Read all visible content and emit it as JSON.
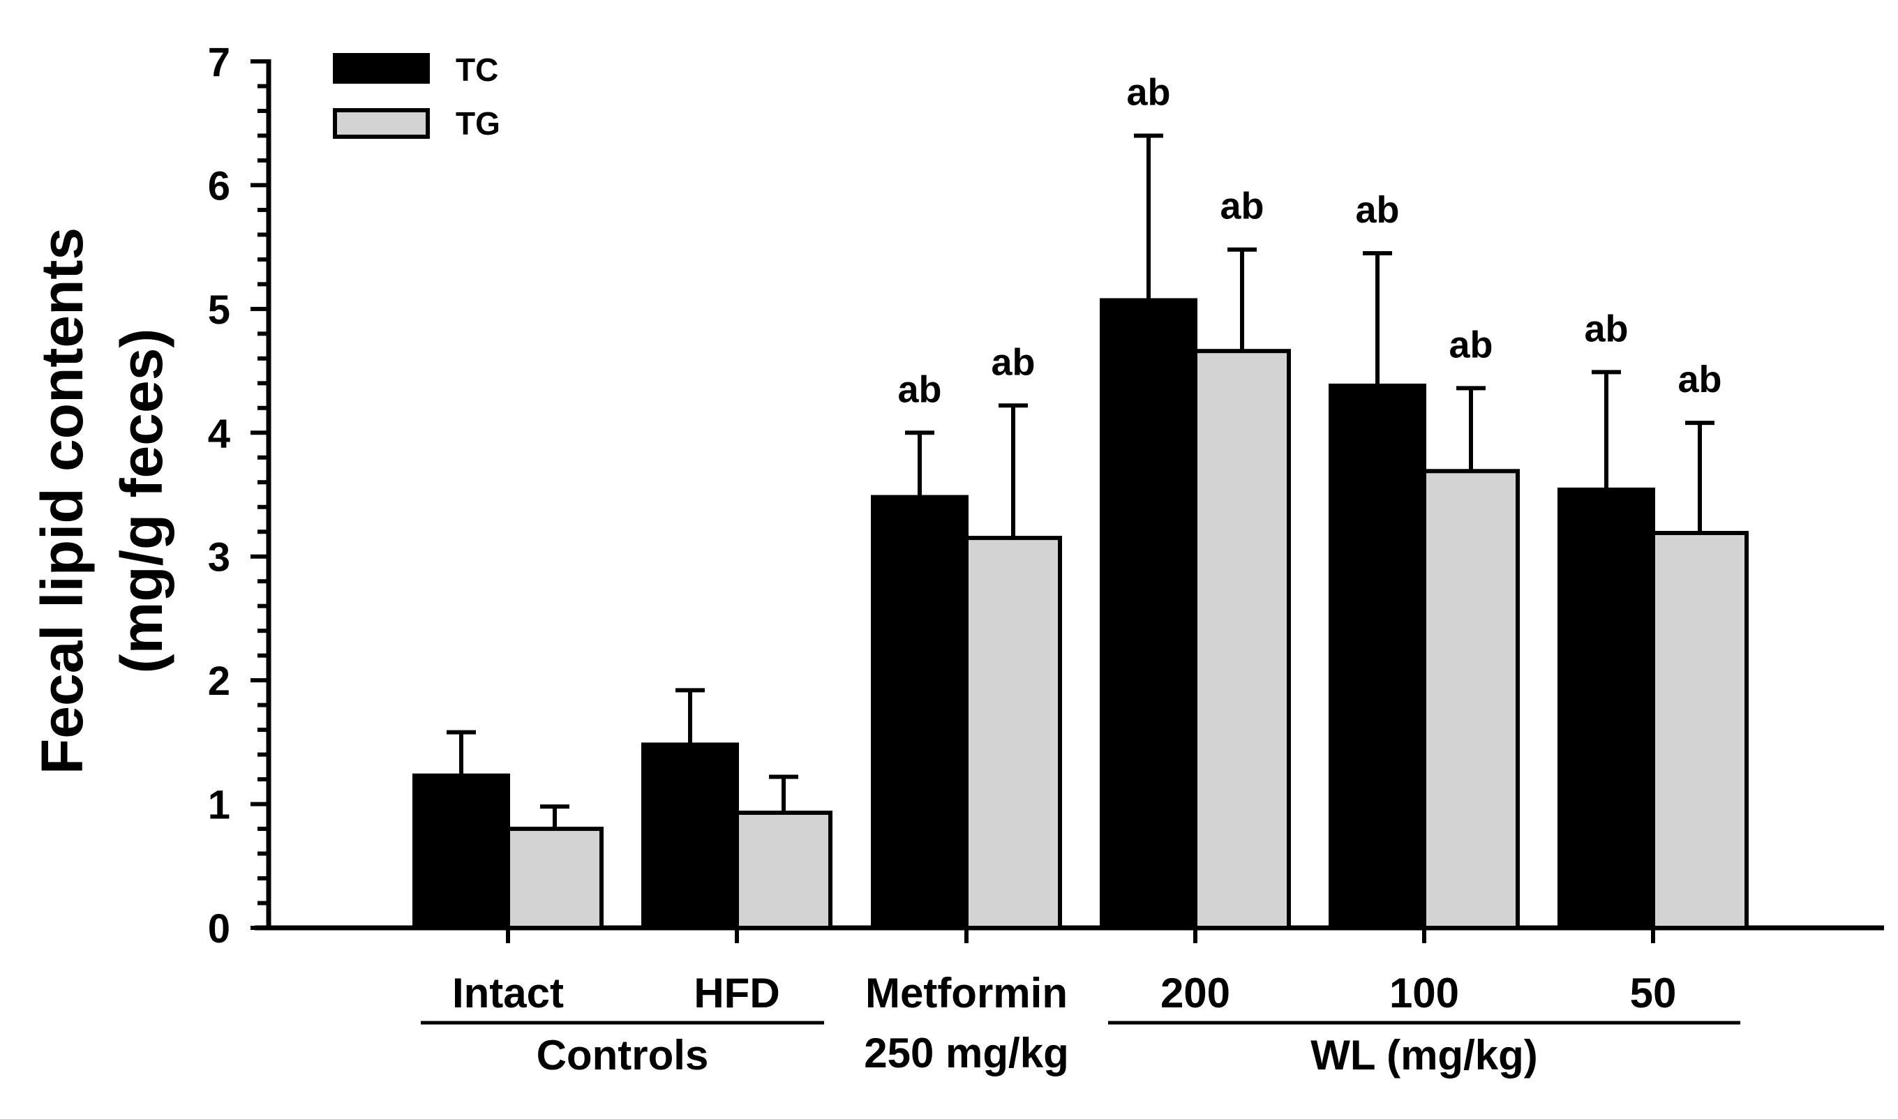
{
  "chart_data": {
    "type": "bar",
    "title": "",
    "ylabel_line1": "Fecal lipid contents",
    "ylabel_line2": "(mg/g feces)",
    "xlabel": "",
    "ylim": [
      0,
      7
    ],
    "yticks": [
      0,
      1,
      2,
      3,
      4,
      5,
      6,
      7
    ],
    "minor_tick_step": 0.2,
    "categories": [
      "Intact",
      "HFD",
      "Metformin",
      "200",
      "100",
      "50"
    ],
    "category_sublabels": [
      "",
      "",
      "250 mg/kg",
      "",
      "",
      ""
    ],
    "groups": [
      {
        "label": "Controls",
        "categories": [
          "Intact",
          "HFD"
        ]
      },
      {
        "label": "WL (mg/kg)",
        "categories": [
          "200",
          "100",
          "50"
        ]
      }
    ],
    "series": [
      {
        "name": "TC",
        "color": "#000000",
        "values": [
          1.23,
          1.48,
          3.48,
          5.07,
          4.38,
          3.54
        ],
        "errors": [
          0.35,
          0.44,
          0.52,
          1.33,
          1.07,
          0.95
        ],
        "significance": [
          "",
          "",
          "ab",
          "ab",
          "ab",
          "ab"
        ]
      },
      {
        "name": "TG",
        "color": "#d3d3d3",
        "values": [
          0.8,
          0.93,
          3.15,
          4.66,
          3.69,
          3.19
        ],
        "errors": [
          0.18,
          0.29,
          1.07,
          0.82,
          0.67,
          0.89
        ],
        "significance": [
          "",
          "",
          "ab",
          "ab",
          "ab",
          "ab"
        ]
      }
    ],
    "legend": {
      "position": "top-left",
      "entries": [
        "TC",
        "TG"
      ]
    },
    "grid": false
  }
}
